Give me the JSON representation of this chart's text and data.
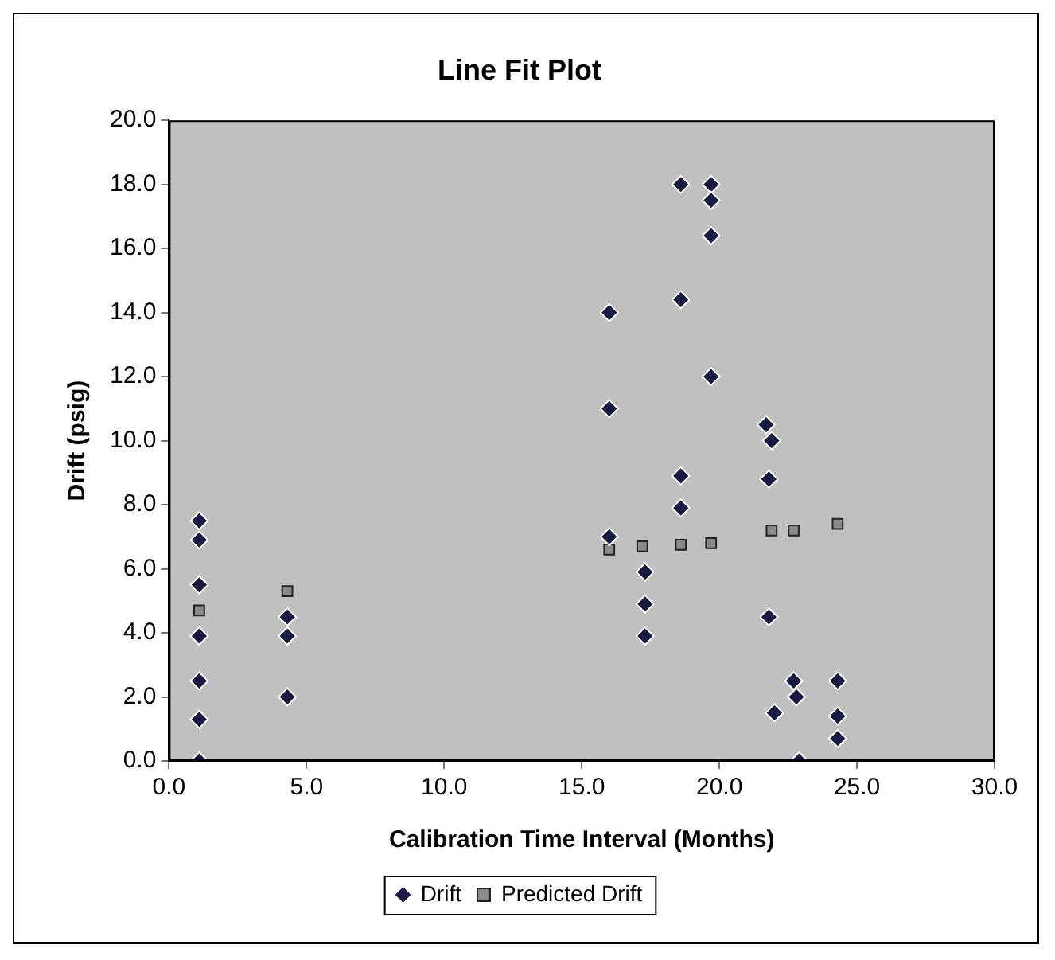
{
  "chart_data": {
    "type": "scatter",
    "title": "Line Fit Plot",
    "xlabel": "Calibration Time Interval (Months)",
    "ylabel": "Drift (psig)",
    "xlim": [
      0,
      30
    ],
    "xticks": [
      {
        "value": 0,
        "label": "0.0"
      },
      {
        "value": 5,
        "label": "5.0"
      },
      {
        "value": 10,
        "label": "10.0"
      },
      {
        "value": 15,
        "label": "15.0"
      },
      {
        "value": 20,
        "label": "20.0"
      },
      {
        "value": 25,
        "label": "25.0"
      },
      {
        "value": 30,
        "label": "30.0"
      }
    ],
    "ylim": [
      0,
      20
    ],
    "yticks": [
      {
        "value": 0,
        "label": "0.0"
      },
      {
        "value": 2,
        "label": "2.0"
      },
      {
        "value": 4,
        "label": "4.0"
      },
      {
        "value": 6,
        "label": "6.0"
      },
      {
        "value": 8,
        "label": "8.0"
      },
      {
        "value": 10,
        "label": "10.0"
      },
      {
        "value": 12,
        "label": "12.0"
      },
      {
        "value": 14,
        "label": "14.0"
      },
      {
        "value": 16,
        "label": "16.0"
      },
      {
        "value": 18,
        "label": "18.0"
      },
      {
        "value": 20,
        "label": "20.0"
      }
    ],
    "legend": "bottom",
    "grid": false,
    "series": [
      {
        "name": "Drift",
        "color": "#1a1a40",
        "marker": "diamond",
        "x": [
          1.1,
          1.1,
          1.1,
          1.1,
          1.1,
          1.1,
          1.1,
          4.3,
          4.3,
          4.3,
          16.0,
          16.0,
          16.0,
          17.3,
          17.3,
          17.3,
          18.6,
          18.6,
          18.6,
          18.6,
          19.7,
          19.7,
          19.7,
          19.7,
          21.7,
          21.9,
          21.8,
          21.8,
          22.0,
          22.7,
          22.8,
          22.9,
          24.3,
          24.3,
          24.3
        ],
        "values": [
          7.5,
          6.9,
          5.5,
          3.9,
          2.5,
          1.3,
          0,
          4.5,
          3.9,
          2.0,
          14.0,
          11.0,
          7.0,
          5.9,
          4.9,
          3.9,
          18.0,
          14.4,
          8.9,
          7.9,
          18.0,
          17.5,
          16.4,
          12.0,
          10.5,
          10.0,
          8.8,
          4.5,
          1.5,
          2.5,
          2.0,
          0,
          2.5,
          1.4,
          0.7
        ]
      },
      {
        "name": "Predicted Drift",
        "color": "#8a8a8a",
        "marker": "square",
        "x": [
          1.1,
          4.3,
          16.0,
          17.2,
          18.6,
          19.7,
          21.9,
          22.7,
          24.3
        ],
        "values": [
          4.7,
          5.3,
          6.6,
          6.7,
          6.75,
          6.8,
          7.2,
          7.2,
          7.4
        ]
      }
    ]
  }
}
